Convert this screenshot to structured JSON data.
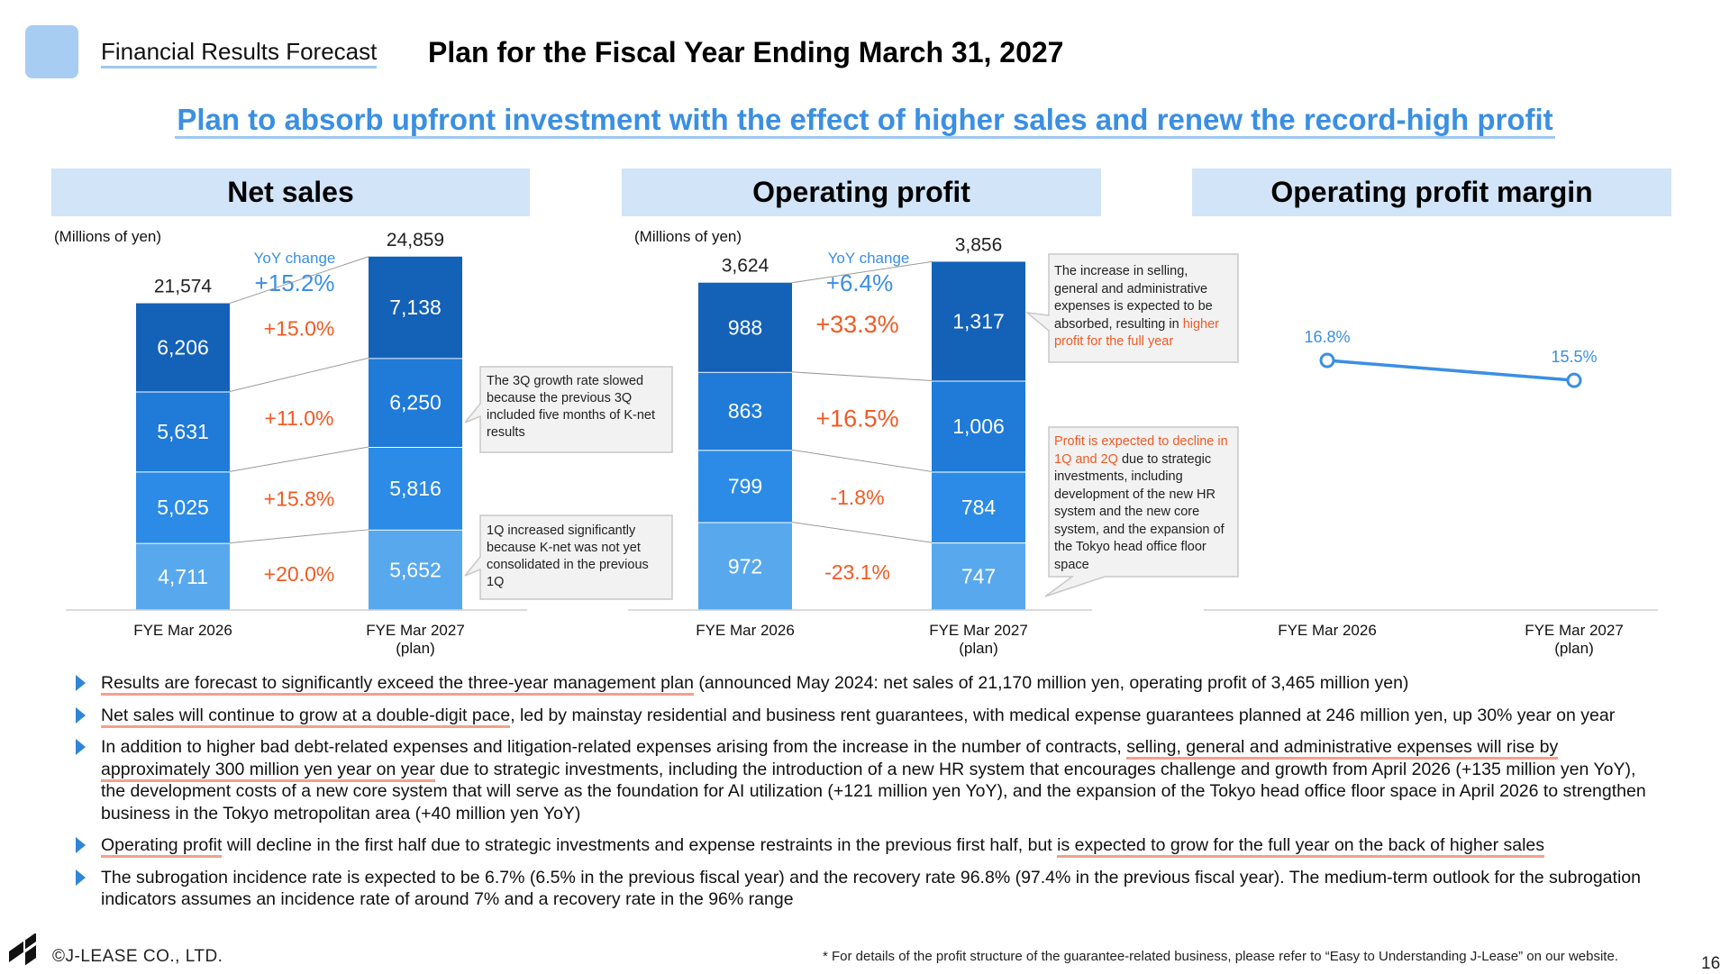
{
  "header": {
    "section_label": "Financial Results Forecast",
    "title": "Plan for the Fiscal Year Ending March 31, 2027",
    "headline": "Plan to absorb upfront investment with the effect of higher sales and renew the record-high profit"
  },
  "colors": {
    "q4": "#1461b8",
    "q3": "#1f7ad8",
    "q2": "#2b8be6",
    "q1": "#58a8ee",
    "accent": "#3a8fe3",
    "change": "#f15a24",
    "panel_head": "#d1e4f8"
  },
  "panels": {
    "net_sales": {
      "title": "Net sales",
      "unit": "(Millions of yen)",
      "yoy_label": "YoY change",
      "yoy_value": "+15.2%"
    },
    "operating_profit": {
      "title": "Operating profit",
      "unit": "(Millions of yen)",
      "yoy_label": "YoY change",
      "yoy_value": "+6.4%"
    },
    "margin": {
      "title": "Operating profit margin"
    }
  },
  "callouts": {
    "sales_q3": "The 3Q growth rate slowed because the previous 3Q included five months of K-net results",
    "sales_q1": "1Q increased significantly because K-net was not yet consolidated in the previous 1Q",
    "profit_top_black": "The increase in selling, general and administrative expenses is expected to be absorbed, resulting in",
    "profit_top_red": "higher profit for the full year",
    "profit_low_red": "Profit is expected to decline in 1Q and 2Q",
    "profit_low_black": "due to strategic investments, including development of the new HR system and the new core system, and the expansion of the Tokyo head office floor space"
  },
  "chart_data": [
    {
      "type": "bar",
      "stacked": true,
      "title": "Net sales",
      "ylabel": "(Millions of yen)",
      "categories": [
        "FYE Mar 2026",
        "FYE Mar 2027\n(plan)"
      ],
      "totals": [
        "21,574",
        "24,859"
      ],
      "series": [
        {
          "values": [
            4711,
            5652
          ],
          "labels": [
            "4,711",
            "5,652"
          ],
          "change": "+20.0%"
        },
        {
          "values": [
            5025,
            5816
          ],
          "labels": [
            "5,025",
            "5,816"
          ],
          "change": "+15.8%"
        },
        {
          "values": [
            5631,
            6250
          ],
          "labels": [
            "5,631",
            "6,250"
          ],
          "change": "+11.0%"
        },
        {
          "values": [
            6206,
            7138
          ],
          "labels": [
            "6,206",
            "7,138"
          ],
          "change": "+15.0%"
        }
      ]
    },
    {
      "type": "bar",
      "stacked": true,
      "title": "Operating profit",
      "ylabel": "(Millions of yen)",
      "categories": [
        "FYE Mar 2026",
        "FYE Mar 2027\n(plan)"
      ],
      "totals": [
        "3,624",
        "3,856"
      ],
      "series": [
        {
          "values": [
            972,
            747
          ],
          "labels": [
            "972",
            "747"
          ],
          "change": "-23.1%"
        },
        {
          "values": [
            799,
            784
          ],
          "labels": [
            "799",
            "784"
          ],
          "change": "-1.8%"
        },
        {
          "values": [
            863,
            1006
          ],
          "labels": [
            "863",
            "1,006"
          ],
          "change": "+16.5%"
        },
        {
          "values": [
            988,
            1317
          ],
          "labels": [
            "988",
            "1,317"
          ],
          "change": "+33.3%"
        }
      ]
    },
    {
      "type": "line",
      "title": "Operating profit margin",
      "categories": [
        "FYE Mar 2026",
        "FYE Mar 2027\n(plan)"
      ],
      "values": [
        16.8,
        15.5
      ],
      "labels": [
        "16.8%",
        "15.5%"
      ]
    }
  ],
  "bullets": [
    [
      {
        "t": "Results are forecast to significantly exceed the three-year management plan",
        "u": true
      },
      {
        "t": " (announced May 2024: net sales of 21,170 million yen, operating profit of 3,465 million yen)",
        "u": false
      }
    ],
    [
      {
        "t": "Net sales will continue to grow at a double-digit pace",
        "u": true
      },
      {
        "t": ", led by mainstay residential and business rent guarantees, with medical expense guarantees planned at 246 million yen, up 30% year on year",
        "u": false
      }
    ],
    [
      {
        "t": "In addition to higher bad debt-related expenses and litigation-related expenses arising from the increase in the number of contracts, ",
        "u": false
      },
      {
        "t": "selling, general and administrative expenses will rise by approximately 300 million yen year on year",
        "u": true
      },
      {
        "t": " due to strategic investments, including the introduction of a new HR system that encourages challenge and growth from April 2026 (+135 million yen YoY), the development costs of a new core system that will serve as the foundation for AI utilization (+121 million yen YoY), and the expansion of the Tokyo head office floor space in April 2026 to strengthen business in the Tokyo metropolitan area (+40 million yen YoY)",
        "u": false
      }
    ],
    [
      {
        "t": "Operating profit",
        "u": true
      },
      {
        "t": " will decline in the first half due to strategic investments and expense restraints in the previous first half, but ",
        "u": false
      },
      {
        "t": "is expected to grow for the full year on the back of higher sales",
        "u": true
      }
    ],
    [
      {
        "t": "The subrogation incidence rate is expected to be 6.7% (6.5% in the previous fiscal year) and the recovery rate 96.8% (97.4% in the previous fiscal year). The medium-term outlook for the subrogation indicators assumes an incidence rate of around 7% and a recovery rate in the 96% range",
        "u": false
      }
    ]
  ],
  "footer": {
    "copyright": "©J-LEASE CO., LTD.",
    "footnote": "* For details of the profit structure of the guarantee-related business, please refer to “Easy to Understanding J-Lease” on our website.",
    "page_number": "16"
  }
}
